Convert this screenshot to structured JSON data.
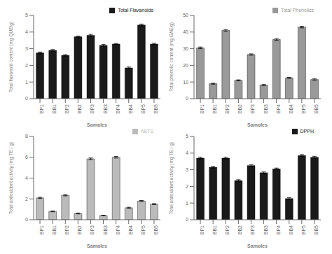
{
  "chart_data": [
    {
      "type": "bar",
      "categories": [
        "BP1",
        "BB1",
        "BP2",
        "BB2",
        "BP3",
        "BB3",
        "BP4",
        "BB4",
        "BP5",
        "BB5"
      ],
      "series": [
        {
          "name": "Total Flavanoids",
          "color": "#1a1a1a",
          "values": [
            2.75,
            2.9,
            2.6,
            3.72,
            3.8,
            3.2,
            3.28,
            1.85,
            4.42,
            3.28
          ],
          "errors": [
            0.05,
            0.05,
            0.04,
            0.04,
            0.06,
            0.05,
            0.04,
            0.05,
            0.06,
            0.05
          ]
        }
      ],
      "xlabel": "Samples",
      "ylabel": "Total flavanoid content (mg QUE/g)",
      "ylim": [
        0,
        5
      ],
      "yticks": [
        0,
        1,
        2,
        3,
        4,
        5
      ],
      "legend": "upper right"
    },
    {
      "type": "bar",
      "categories": [
        "BP1",
        "BB1",
        "BP2",
        "BB2",
        "BP3",
        "BB3",
        "BP4",
        "BB4",
        "BP5",
        "BB5"
      ],
      "series": [
        {
          "name": "Total Phenolics",
          "color": "#999999",
          "values": [
            30.5,
            9.0,
            41.0,
            11.0,
            26.5,
            8.2,
            35.5,
            12.5,
            43.0,
            11.5
          ],
          "errors": [
            0.5,
            0.3,
            0.5,
            0.3,
            0.4,
            0.3,
            0.5,
            0.3,
            0.5,
            0.4
          ]
        }
      ],
      "xlabel": "Samples",
      "ylabel": "Total phenolic content (mg GAE/g)",
      "ylim": [
        0,
        50
      ],
      "yticks": [
        0,
        10,
        20,
        30,
        40,
        50
      ],
      "legend": "upper right"
    },
    {
      "type": "bar",
      "categories": [
        "BP1",
        "BB1",
        "BP2",
        "BB2",
        "BP3",
        "BB3",
        "BP4",
        "BB4",
        "BP5",
        "BB5"
      ],
      "series": [
        {
          "name": "ABTS",
          "color": "#bbbbbb",
          "values": [
            2.1,
            0.8,
            2.35,
            0.6,
            5.85,
            0.4,
            6.0,
            1.15,
            1.8,
            1.5
          ],
          "errors": [
            0.06,
            0.04,
            0.06,
            0.04,
            0.08,
            0.03,
            0.08,
            0.05,
            0.05,
            0.05
          ]
        }
      ],
      "xlabel": "Samples",
      "ylabel": "Total antioxidant activity (mg TE / g)",
      "ylim": [
        0,
        8
      ],
      "yticks": [
        0,
        2,
        4,
        6,
        8
      ],
      "legend": "upper right"
    },
    {
      "type": "bar",
      "categories": [
        "BP1",
        "BB1",
        "BP2",
        "BB2",
        "BP3",
        "BB3",
        "BP4",
        "BB4",
        "BP5",
        "BB5"
      ],
      "series": [
        {
          "name": "DPPH",
          "color": "#1a1a1a",
          "values": [
            3.7,
            3.15,
            3.7,
            2.35,
            3.25,
            2.82,
            3.05,
            1.27,
            3.85,
            3.75
          ],
          "errors": [
            0.06,
            0.05,
            0.06,
            0.05,
            0.05,
            0.05,
            0.05,
            0.05,
            0.06,
            0.06
          ]
        }
      ],
      "xlabel": "Samples",
      "ylabel": "Total antioxidant activity (mg TE / g)",
      "ylim": [
        0,
        5
      ],
      "yticks": [
        0,
        1,
        2,
        3,
        4,
        5
      ],
      "legend": "upper right"
    }
  ]
}
